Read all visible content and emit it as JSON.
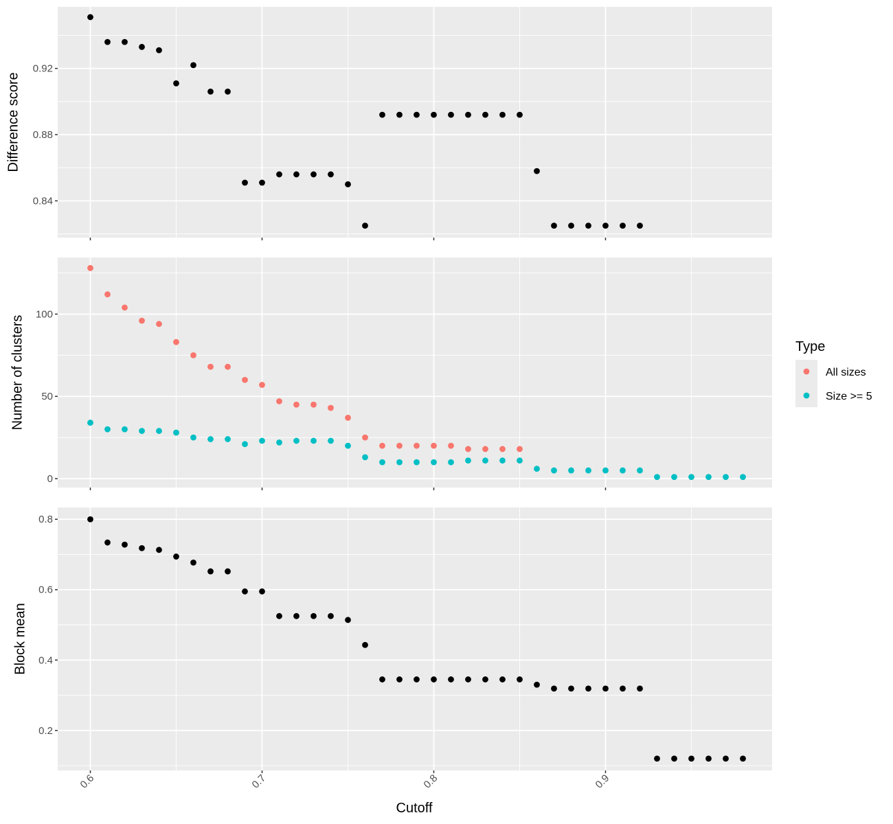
{
  "chart_data": {
    "type": "scatter",
    "xlabel": "Cutoff",
    "x_ticks": [
      0.6,
      0.7,
      0.8,
      0.9
    ],
    "x_tick_labels": [
      "0.6",
      "0.7",
      "0.8",
      "0.9"
    ],
    "xlim": [
      0.581,
      0.997
    ],
    "grid": true,
    "legend": {
      "title": "Type",
      "placement": "right",
      "entries": [
        {
          "label": "All sizes",
          "color": "#F8766D"
        },
        {
          "label": "Size >= 5",
          "color": "#00BFC4"
        }
      ]
    },
    "panels": [
      {
        "ylabel": "Difference score",
        "ylim": [
          0.8178,
          0.9572
        ],
        "y_ticks": [
          0.84,
          0.88,
          0.92
        ],
        "y_tick_labels": [
          "0.84",
          "0.88",
          "0.92"
        ],
        "series": [
          {
            "color": "#000000",
            "x": [
              0.6,
              0.61,
              0.62,
              0.63,
              0.64,
              0.65,
              0.66,
              0.67,
              0.68,
              0.69,
              0.7,
              0.71,
              0.72,
              0.73,
              0.74,
              0.75,
              0.76,
              0.77,
              0.78,
              0.79,
              0.8,
              0.81,
              0.82,
              0.83,
              0.84,
              0.85,
              0.86,
              0.87,
              0.88,
              0.89,
              0.9,
              0.91,
              0.92
            ],
            "values": [
              0.951,
              0.936,
              0.936,
              0.933,
              0.931,
              0.911,
              0.922,
              0.906,
              0.906,
              0.851,
              0.851,
              0.856,
              0.856,
              0.856,
              0.856,
              0.85,
              0.825,
              0.892,
              0.892,
              0.892,
              0.892,
              0.892,
              0.892,
              0.892,
              0.892,
              0.892,
              0.858,
              0.825,
              0.825,
              0.825,
              0.825,
              0.825,
              0.825
            ]
          }
        ]
      },
      {
        "ylabel": "Number of clusters",
        "ylim": [
          -5.4,
          134.4
        ],
        "y_ticks": [
          0,
          50,
          100
        ],
        "y_tick_labels": [
          "0",
          "50",
          "100"
        ],
        "series": [
          {
            "name": "All sizes",
            "color": "#F8766D",
            "x": [
              0.6,
              0.61,
              0.62,
              0.63,
              0.64,
              0.65,
              0.66,
              0.67,
              0.68,
              0.69,
              0.7,
              0.71,
              0.72,
              0.73,
              0.74,
              0.75,
              0.76,
              0.77,
              0.78,
              0.79,
              0.8,
              0.81,
              0.82,
              0.83,
              0.84,
              0.85
            ],
            "values": [
              128,
              112,
              104,
              96,
              94,
              83,
              75,
              68,
              68,
              60,
              57,
              47,
              45,
              45,
              43,
              37,
              25,
              20,
              20,
              20,
              20,
              20,
              18,
              18,
              18,
              18
            ]
          },
          {
            "name": "Size >= 5",
            "color": "#00BFC4",
            "x": [
              0.6,
              0.61,
              0.62,
              0.63,
              0.64,
              0.65,
              0.66,
              0.67,
              0.68,
              0.69,
              0.7,
              0.71,
              0.72,
              0.73,
              0.74,
              0.75,
              0.76,
              0.77,
              0.78,
              0.79,
              0.8,
              0.81,
              0.82,
              0.83,
              0.84,
              0.85,
              0.86,
              0.87,
              0.88,
              0.89,
              0.9,
              0.91,
              0.92,
              0.93,
              0.94,
              0.95,
              0.96,
              0.97,
              0.98
            ],
            "values": [
              34,
              30,
              30,
              29,
              29,
              28,
              25,
              24,
              24,
              21,
              23,
              22,
              23,
              23,
              23,
              20,
              13,
              10,
              10,
              10,
              10,
              10,
              11,
              11,
              11,
              11,
              6,
              5,
              5,
              5,
              5,
              5,
              5,
              1,
              1,
              1,
              1,
              1,
              1
            ]
          }
        ]
      },
      {
        "ylabel": "Block mean",
        "ylim": [
          0.0864,
          0.8336
        ],
        "y_ticks": [
          0.2,
          0.4,
          0.6,
          0.8
        ],
        "y_tick_labels": [
          "0.2",
          "0.4",
          "0.6",
          "0.8"
        ],
        "series": [
          {
            "color": "#000000",
            "x": [
              0.6,
              0.61,
              0.62,
              0.63,
              0.64,
              0.65,
              0.66,
              0.67,
              0.68,
              0.69,
              0.7,
              0.71,
              0.72,
              0.73,
              0.74,
              0.75,
              0.76,
              0.77,
              0.78,
              0.79,
              0.8,
              0.81,
              0.82,
              0.83,
              0.84,
              0.85,
              0.86,
              0.87,
              0.88,
              0.89,
              0.9,
              0.91,
              0.92,
              0.93,
              0.94,
              0.95,
              0.96,
              0.97,
              0.98
            ],
            "values": [
              0.8,
              0.734,
              0.728,
              0.718,
              0.713,
              0.694,
              0.677,
              0.652,
              0.652,
              0.595,
              0.595,
              0.525,
              0.525,
              0.525,
              0.525,
              0.514,
              0.443,
              0.345,
              0.345,
              0.345,
              0.345,
              0.345,
              0.345,
              0.345,
              0.345,
              0.345,
              0.33,
              0.319,
              0.319,
              0.319,
              0.319,
              0.319,
              0.319,
              0.12,
              0.12,
              0.12,
              0.12,
              0.12,
              0.12
            ]
          }
        ]
      }
    ]
  }
}
